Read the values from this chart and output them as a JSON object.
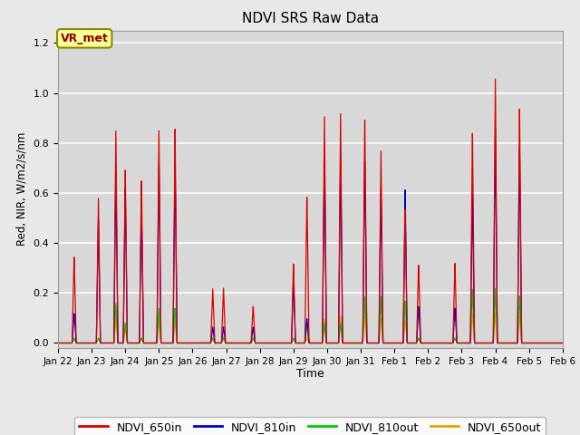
{
  "title": "NDVI SRS Raw Data",
  "xlabel": "Time",
  "ylabel": "Red, NIR, W/m2/s/nm",
  "ylim": [
    -0.02,
    1.25
  ],
  "xlim": [
    0,
    375
  ],
  "fig_bg_color": "#e8e8e8",
  "plot_bg_color": "#d8d8d8",
  "annotation_text": "VR_met",
  "annotation_box_color": "#ffff99",
  "annotation_box_edge": "#8B8B00",
  "colors": {
    "NDVI_650in": "#dd0000",
    "NDVI_810in": "#0000cc",
    "NDVI_810out": "#00cc00",
    "NDVI_650out": "#ddaa00"
  },
  "xtick_labels": [
    "Jan 22",
    "Jan 23",
    "Jan 24",
    "Jan 25",
    "Jan 26",
    "Jan 27",
    "Jan 28",
    "Jan 29",
    "Jan 30",
    "Jan 31",
    "Feb 1",
    "Feb 2",
    "Feb 3",
    "Feb 4",
    "Feb 5",
    "Feb 6"
  ],
  "xtick_positions": [
    0,
    25,
    50,
    75,
    100,
    125,
    150,
    175,
    200,
    225,
    250,
    275,
    300,
    325,
    350,
    375
  ],
  "ytick_positions": [
    0.0,
    0.2,
    0.4,
    0.6,
    0.8,
    1.0,
    1.2
  ],
  "peaks_650in": [
    [
      12,
      0.35
    ],
    [
      30,
      0.59
    ],
    [
      43,
      0.85
    ],
    [
      50,
      0.7
    ],
    [
      62,
      0.67
    ],
    [
      75,
      0.86
    ],
    [
      87,
      0.86
    ],
    [
      115,
      0.22
    ],
    [
      123,
      0.22
    ],
    [
      145,
      0.15
    ],
    [
      175,
      0.32
    ],
    [
      185,
      0.6
    ],
    [
      198,
      0.92
    ],
    [
      210,
      0.92
    ],
    [
      228,
      0.92
    ],
    [
      240,
      0.78
    ],
    [
      258,
      0.54
    ],
    [
      268,
      0.32
    ],
    [
      295,
      0.32
    ],
    [
      308,
      0.86
    ],
    [
      325,
      1.07
    ],
    [
      343,
      0.95
    ]
  ],
  "peaks_810in": [
    [
      12,
      0.12
    ],
    [
      30,
      0.5
    ],
    [
      43,
      0.7
    ],
    [
      50,
      0.63
    ],
    [
      62,
      0.55
    ],
    [
      75,
      0.73
    ],
    [
      87,
      0.73
    ],
    [
      115,
      0.065
    ],
    [
      123,
      0.065
    ],
    [
      145,
      0.065
    ],
    [
      175,
      0.25
    ],
    [
      185,
      0.1
    ],
    [
      198,
      0.76
    ],
    [
      210,
      0.76
    ],
    [
      228,
      0.75
    ],
    [
      240,
      0.63
    ],
    [
      258,
      0.62
    ],
    [
      268,
      0.15
    ],
    [
      295,
      0.14
    ],
    [
      308,
      0.61
    ],
    [
      325,
      0.87
    ],
    [
      343,
      0.79
    ]
  ],
  "peaks_810out": [
    [
      12,
      0.02
    ],
    [
      30,
      0.02
    ],
    [
      43,
      0.16
    ],
    [
      50,
      0.08
    ],
    [
      62,
      0.02
    ],
    [
      75,
      0.14
    ],
    [
      87,
      0.14
    ],
    [
      115,
      0.02
    ],
    [
      123,
      0.02
    ],
    [
      145,
      0.02
    ],
    [
      175,
      0.02
    ],
    [
      185,
      0.08
    ],
    [
      198,
      0.08
    ],
    [
      210,
      0.08
    ],
    [
      228,
      0.19
    ],
    [
      240,
      0.19
    ],
    [
      258,
      0.17
    ],
    [
      268,
      0.02
    ],
    [
      295,
      0.02
    ],
    [
      308,
      0.22
    ],
    [
      325,
      0.22
    ],
    [
      343,
      0.19
    ]
  ],
  "peaks_650out": [
    [
      12,
      0.02
    ],
    [
      30,
      0.02
    ],
    [
      43,
      0.1
    ],
    [
      50,
      0.06
    ],
    [
      62,
      0.02
    ],
    [
      75,
      0.09
    ],
    [
      87,
      0.09
    ],
    [
      115,
      0.02
    ],
    [
      123,
      0.025
    ],
    [
      145,
      0.02
    ],
    [
      175,
      0.02
    ],
    [
      185,
      0.02
    ],
    [
      198,
      0.1
    ],
    [
      210,
      0.11
    ],
    [
      228,
      0.11
    ],
    [
      240,
      0.1
    ],
    [
      258,
      0.09
    ],
    [
      268,
      0.02
    ],
    [
      295,
      0.02
    ],
    [
      308,
      0.12
    ],
    [
      325,
      0.12
    ],
    [
      343,
      0.11
    ]
  ]
}
